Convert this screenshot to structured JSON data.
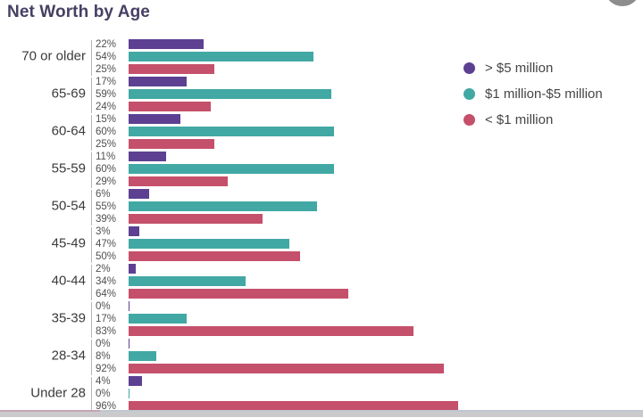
{
  "title": "Net Worth by Age",
  "chart_data": {
    "type": "bar",
    "orientation": "horizontal",
    "title": "Net Worth by Age",
    "categories": [
      "70 or older",
      "65-69",
      "60-64",
      "55-59",
      "50-54",
      "45-49",
      "40-44",
      "35-39",
      "28-34",
      "Under 28"
    ],
    "series": [
      {
        "name": "> $5 million",
        "color": "#5d4092",
        "values": [
          22,
          17,
          15,
          11,
          6,
          3,
          2,
          0,
          0,
          4
        ]
      },
      {
        "name": "$1 million-$5 million",
        "color": "#42a8a4",
        "values": [
          54,
          59,
          60,
          60,
          55,
          47,
          34,
          17,
          8,
          0
        ]
      },
      {
        "name": "< $1 million",
        "color": "#c5506b",
        "values": [
          25,
          24,
          25,
          29,
          39,
          50,
          64,
          83,
          92,
          96
        ]
      }
    ],
    "value_format": "percent",
    "bar_labels_visible": true,
    "xlim": [
      0,
      100
    ],
    "grid": false,
    "legend_position": "right",
    "axis_line_color": "#b6b6ba",
    "title_color": "#474063"
  }
}
